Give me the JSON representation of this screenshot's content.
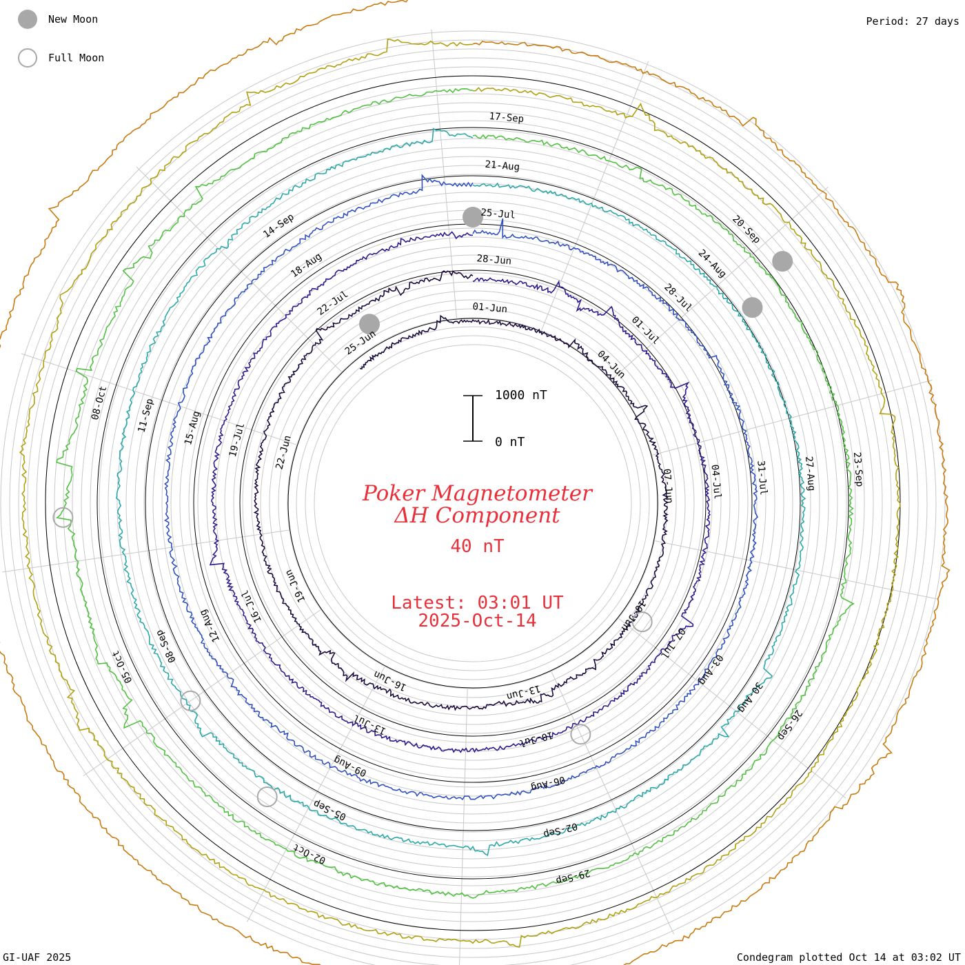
{
  "legend": {
    "new_moon": "New Moon",
    "full_moon": "Full Moon"
  },
  "period": "Period: 27 days",
  "credit": "GI-UAF 2025",
  "plotted": "Condegram plotted Oct 14 at 03:02 UT",
  "title": {
    "line1": "Poker Magnetometer",
    "line2": "ΔH Component",
    "scale": "40 nT",
    "latest": "Latest: 03:01 UT",
    "date": "2025-Oct-14"
  },
  "scale_bar": {
    "top_label": "1000 nT",
    "bottom_label": "0 nT"
  },
  "colors": {
    "title": "#e8303a",
    "moon": "#a8a8a8",
    "grid": "#c8c8c8",
    "rotations": [
      "#1a0a3c",
      "#2c1a8c",
      "#3050c0",
      "#2aa8a8",
      "#50c040",
      "#b0a010",
      "#c87a10",
      "#c02010"
    ]
  },
  "chart_data": {
    "type": "condegram",
    "title": "Poker Magnetometer ΔH Component",
    "period_days": 27,
    "units": "nT",
    "scale_nT": 40,
    "series": [
      {
        "name": "rotation-1",
        "start": "01-Jun",
        "dates": [
          "01-Jun",
          "04-Jun",
          "07-Jun",
          "10-Jun",
          "13-Jun",
          "16-Jun",
          "19-Jun",
          "22-Jun",
          "25-Jun"
        ]
      },
      {
        "name": "rotation-2",
        "start": "28-Jun",
        "dates": [
          "28-Jun",
          "01-Jul",
          "04-Jul",
          "07-Jul",
          "10-Jul",
          "13-Jul",
          "16-Jul",
          "19-Jul",
          "22-Jul"
        ]
      },
      {
        "name": "rotation-3",
        "start": "25-Jul",
        "dates": [
          "25-Jul",
          "28-Jul",
          "31-Jul",
          "03-Aug",
          "06-Aug",
          "09-Aug",
          "12-Aug",
          "15-Aug",
          "18-Aug"
        ]
      },
      {
        "name": "rotation-4",
        "start": "21-Aug",
        "dates": [
          "21-Aug",
          "24-Aug",
          "27-Aug",
          "30-Aug",
          "02-Sep",
          "05-Sep",
          "08-Sep",
          "11-Sep",
          "14-Sep"
        ]
      },
      {
        "name": "rotation-5",
        "start": "17-Sep",
        "dates": [
          "17-Sep",
          "20-Sep",
          "23-Sep",
          "26-Sep",
          "29-Sep",
          "02-Oct",
          "05-Oct",
          "08-Oct"
        ]
      }
    ],
    "new_moon_dates": [
      "25-Jun",
      "25-Jul",
      "21-Sep",
      "22-Aug"
    ],
    "full_moon_dates": [
      "10-Jun",
      "10-Jul",
      "09-Aug",
      "07-Sep",
      "07-Oct"
    ]
  }
}
